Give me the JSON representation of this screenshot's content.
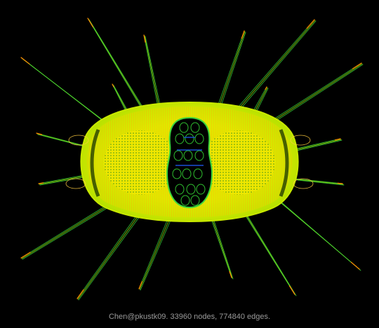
{
  "caption": "Chen@pkustk09. 33960 nodes, 774840 edges.",
  "colors": {
    "background": "#000000",
    "mesh_yellow": "#e6f000",
    "mesh_orange": "#ff9a00",
    "mesh_green": "#4ed800",
    "hole_blue": "#1a4fd6",
    "spike_green": "#38d23a",
    "spike_tip": "#ff8a00"
  }
}
